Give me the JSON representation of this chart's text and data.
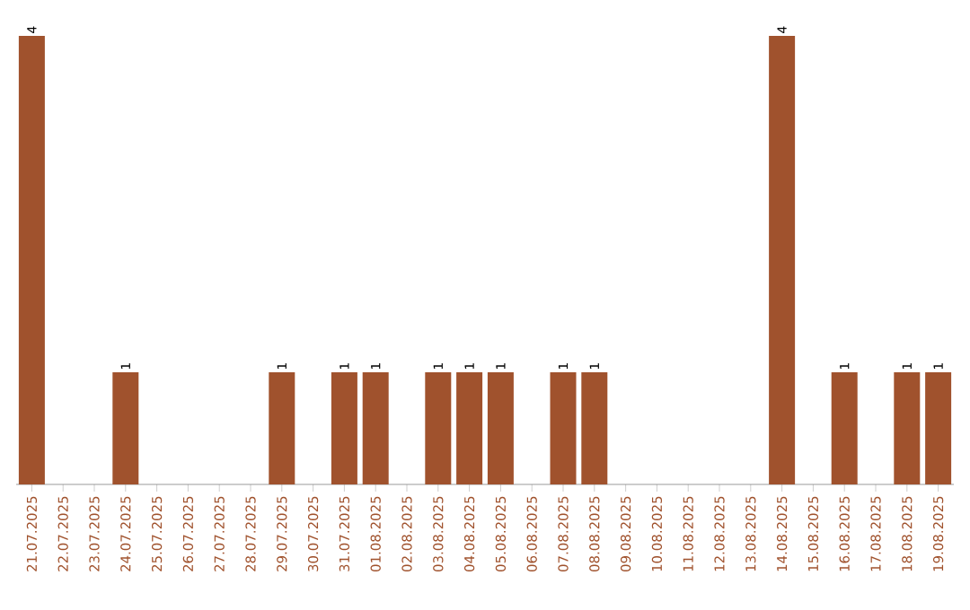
{
  "chart_data": {
    "type": "bar",
    "color": "#a0522d",
    "categories": [
      "21.07.2025",
      "22.07.2025",
      "23.07.2025",
      "24.07.2025",
      "25.07.2025",
      "26.07.2025",
      "27.07.2025",
      "28.07.2025",
      "29.07.2025",
      "30.07.2025",
      "31.07.2025",
      "01.08.2025",
      "02.08.2025",
      "03.08.2025",
      "04.08.2025",
      "05.08.2025",
      "06.08.2025",
      "07.08.2025",
      "08.08.2025",
      "09.08.2025",
      "10.08.2025",
      "11.08.2025",
      "12.08.2025",
      "13.08.2025",
      "14.08.2025",
      "15.08.2025",
      "16.08.2025",
      "17.08.2025",
      "18.08.2025",
      "19.08.2025"
    ],
    "values": [
      4,
      0,
      0,
      1,
      0,
      0,
      0,
      0,
      1,
      0,
      1,
      1,
      0,
      1,
      1,
      1,
      0,
      1,
      1,
      0,
      0,
      0,
      0,
      0,
      4,
      0,
      1,
      0,
      1,
      1
    ],
    "value_labels": [
      "4",
      null,
      null,
      "1",
      null,
      null,
      null,
      null,
      "1",
      null,
      "1",
      "1",
      null,
      "1",
      "1",
      "1",
      null,
      "1",
      "1",
      null,
      null,
      null,
      null,
      null,
      "4",
      null,
      "1",
      null,
      "1",
      "1"
    ]
  }
}
